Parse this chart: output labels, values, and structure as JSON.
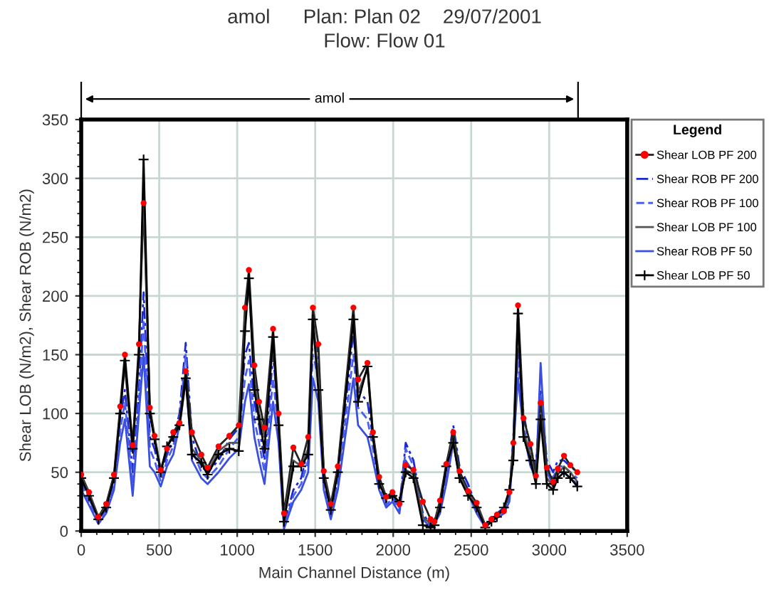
{
  "chart_data": {
    "type": "line",
    "title": "amol      Plan: Plan 02    29/07/2001\nFlow: Flow 01",
    "xlabel": "Main Channel Distance (m)",
    "ylabel": "Shear LOB (N/m2), Shear ROB (N/m2)",
    "legend_title": "Legend",
    "legend": "right",
    "grid": true,
    "xlim": [
      0,
      3500
    ],
    "xticks": [
      0,
      500,
      1000,
      1500,
      2000,
      2500,
      3000,
      3500
    ],
    "ylim": [
      0,
      350
    ],
    "yticks": [
      0,
      50,
      100,
      150,
      200,
      250,
      300,
      350
    ],
    "annotations": [
      "amol"
    ],
    "x": [
      0,
      50,
      110,
      160,
      210,
      250,
      280,
      330,
      370,
      400,
      440,
      470,
      510,
      550,
      590,
      630,
      670,
      710,
      770,
      810,
      880,
      950,
      1010,
      1050,
      1075,
      1110,
      1140,
      1175,
      1230,
      1265,
      1300,
      1360,
      1410,
      1455,
      1485,
      1520,
      1555,
      1600,
      1645,
      1745,
      1775,
      1835,
      1870,
      1910,
      1955,
      1995,
      2040,
      2080,
      2130,
      2190,
      2240,
      2265,
      2300,
      2340,
      2385,
      2425,
      2480,
      2535,
      2590,
      2630,
      2665,
      2710,
      2745,
      2770,
      2800,
      2835,
      2880,
      2915,
      2945,
      2985,
      3025,
      3055,
      3095,
      3135,
      3180
    ],
    "series": [
      {
        "name": "Shear LOB PF 200",
        "color": "#222222",
        "colors": [
          "#ff0000",
          "#ff0000",
          "#ff0000",
          "#ff0000",
          "#ff0000",
          "#ff0000",
          "#ff0000",
          "#ff0000",
          "#ff0000",
          "#ff0000",
          "#ff0000",
          "#ff0000",
          "#ff0000",
          "#ff0000",
          "#ff0000",
          "#ff0000",
          "#ff0000",
          "#ff0000",
          "#ff0000",
          "#ff0000",
          "#ff0000",
          "#ff0000",
          "#ff0000",
          "#ff0000",
          "#ff0000",
          "#ff0000",
          "#ff0000",
          "#ff0000",
          "#ff0000",
          "#ff0000",
          "#ff0000",
          "#ff0000",
          "#ff0000",
          "#ff0000",
          "#ff0000",
          "#ff0000",
          "#ff0000",
          "#ff0000",
          "#ff0000",
          "#ff0000",
          "#ff0000",
          "#ff0000",
          "#ff0000",
          "#ff0000",
          "#ff0000",
          "#ff0000",
          "#ff0000",
          "#ff0000",
          "#ff0000",
          "#ff0000",
          "#ff0000",
          "#ff0000",
          "#ff0000",
          "#ff0000",
          "#ff0000",
          "#ff0000",
          "#ff0000",
          "#ff0000",
          "#ff0000",
          "#ff0000",
          "#ff0000",
          "#ff0000",
          "#ff0000",
          "#ff0000",
          "#ff0000",
          "#ff0000",
          "#ff0000",
          "#ff0000",
          "#ff0000",
          "#ff0000",
          "#ff0000",
          "#ff0000",
          "#ff0000",
          "#ff0000",
          "#ff0000"
        ],
        "line_style": "solid",
        "marker": "circle",
        "values": [
          48,
          33,
          12,
          23,
          48,
          106,
          150,
          73,
          159,
          279,
          105,
          81,
          52,
          70,
          84,
          92,
          136,
          84,
          65,
          54,
          72,
          81,
          90,
          190,
          222,
          141,
          110,
          88,
          172,
          100,
          15,
          71,
          57,
          80,
          190,
          159,
          51,
          23,
          55,
          190,
          129,
          143,
          84,
          46,
          29,
          33,
          23,
          56,
          52,
          25,
          10,
          8,
          26,
          57,
          84,
          51,
          34,
          24,
          5,
          10,
          14,
          17,
          33,
          75,
          192,
          96,
          74,
          47,
          109,
          54,
          42,
          53,
          64,
          56,
          50
        ]
      },
      {
        "name": "Shear ROB PF 200",
        "color": "#1a2ad0",
        "line_style": "dashdot",
        "marker": "none",
        "values": [
          44,
          28,
          10,
          20,
          42,
          95,
          120,
          50,
          120,
          203,
          80,
          70,
          48,
          65,
          78,
          100,
          160,
          80,
          55,
          50,
          60,
          78,
          88,
          150,
          160,
          110,
          90,
          60,
          150,
          95,
          5,
          35,
          45,
          70,
          170,
          150,
          50,
          15,
          45,
          170,
          120,
          110,
          80,
          45,
          25,
          30,
          20,
          75,
          60,
          15,
          5,
          10,
          20,
          50,
          90,
          55,
          40,
          20,
          5,
          12,
          15,
          20,
          30,
          80,
          160,
          100,
          70,
          55,
          120,
          60,
          50,
          60,
          60,
          55,
          50
        ]
      },
      {
        "name": "Shear ROB PF 100",
        "color": "#4a5ef0",
        "line_style": "dashed",
        "marker": "none",
        "values": [
          40,
          25,
          8,
          18,
          38,
          85,
          110,
          40,
          110,
          180,
          70,
          60,
          42,
          60,
          72,
          95,
          150,
          70,
          50,
          45,
          55,
          70,
          80,
          130,
          145,
          95,
          75,
          50,
          130,
          85,
          3,
          30,
          40,
          60,
          150,
          130,
          42,
          12,
          40,
          150,
          105,
          95,
          70,
          40,
          22,
          28,
          18,
          70,
          55,
          12,
          4,
          8,
          18,
          45,
          85,
          50,
          36,
          18,
          4,
          10,
          13,
          18,
          28,
          75,
          145,
          90,
          62,
          50,
          115,
          55,
          45,
          55,
          55,
          50,
          45
        ]
      },
      {
        "name": "Shear LOB PF 100",
        "color": "#555555",
        "line_style": "solid",
        "marker": "none",
        "values": [
          46,
          32,
          11,
          21,
          46,
          102,
          140,
          68,
          150,
          295,
          100,
          80,
          52,
          72,
          82,
          88,
          128,
          70,
          60,
          50,
          68,
          75,
          75,
          180,
          210,
          130,
          100,
          80,
          160,
          95,
          10,
          60,
          55,
          70,
          182,
          130,
          48,
          20,
          52,
          182,
          118,
          138,
          82,
          42,
          28,
          31,
          24,
          52,
          48,
          12,
          6,
          6,
          22,
          55,
          78,
          47,
          32,
          22,
          4,
          9,
          13,
          18,
          34,
          65,
          180,
          85,
          65,
          42,
          100,
          45,
          38,
          48,
          55,
          50,
          42
        ]
      },
      {
        "name": "Shear ROB PF 50",
        "color": "#3a4fe0",
        "line_style": "solid",
        "marker": "none",
        "values": [
          35,
          22,
          6,
          15,
          35,
          75,
          95,
          30,
          100,
          150,
          55,
          50,
          38,
          55,
          65,
          90,
          130,
          60,
          45,
          40,
          50,
          62,
          70,
          110,
          125,
          80,
          60,
          40,
          110,
          75,
          2,
          25,
          35,
          50,
          130,
          110,
          35,
          10,
          35,
          130,
          90,
          80,
          60,
          35,
          20,
          25,
          15,
          60,
          50,
          10,
          3,
          6,
          15,
          40,
          75,
          45,
          32,
          15,
          3,
          8,
          11,
          15,
          25,
          70,
          130,
          85,
          55,
          45,
          143,
          50,
          40,
          50,
          50,
          45,
          40
        ]
      },
      {
        "name": "Shear LOB PF 50",
        "color": "#000000",
        "line_style": "solid",
        "marker": "cross",
        "values": [
          45,
          30,
          10,
          20,
          45,
          100,
          145,
          70,
          150,
          316,
          100,
          78,
          50,
          72,
          80,
          90,
          130,
          65,
          58,
          48,
          65,
          70,
          68,
          170,
          215,
          120,
          95,
          70,
          165,
          90,
          8,
          55,
          55,
          65,
          180,
          120,
          45,
          18,
          50,
          180,
          110,
          140,
          80,
          40,
          28,
          30,
          25,
          50,
          45,
          5,
          3,
          5,
          20,
          55,
          75,
          45,
          30,
          20,
          3,
          8,
          12,
          20,
          35,
          60,
          185,
          80,
          60,
          40,
          95,
          40,
          35,
          45,
          50,
          45,
          38
        ]
      }
    ]
  }
}
